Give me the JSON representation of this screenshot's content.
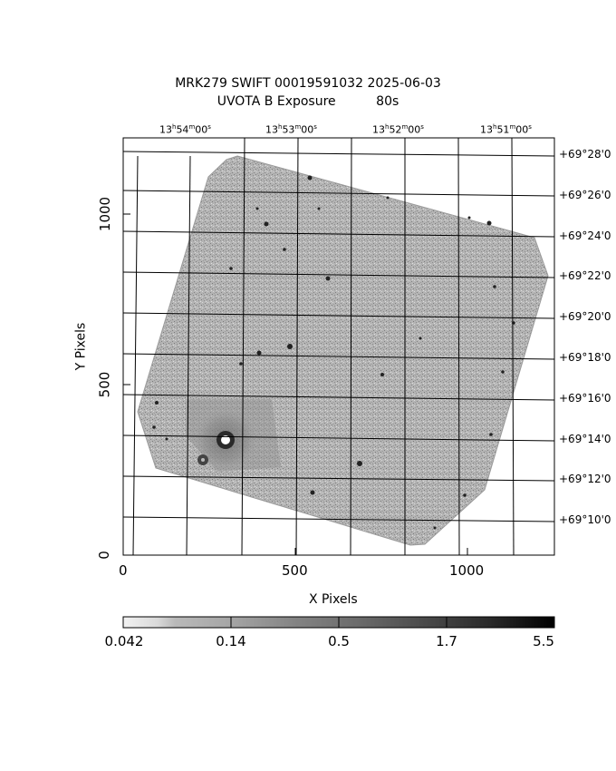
{
  "title": {
    "line1": "MRK279 SWIFT 00019591032 2025-06-03",
    "line2": "UVOTA B Exposure          80s"
  },
  "axes": {
    "x_label": "X Pixels",
    "y_label": "Y Pixels",
    "x_ticks": [
      "0",
      "500",
      "1000"
    ],
    "y_ticks": [
      "0",
      "500",
      "1000"
    ],
    "ra_ticks": [
      {
        "h": "13",
        "m": "54",
        "s": "00"
      },
      {
        "h": "13",
        "m": "53",
        "s": "00"
      },
      {
        "h": "13",
        "m": "52",
        "s": "00"
      },
      {
        "h": "13",
        "m": "51",
        "s": "00"
      }
    ],
    "dec_ticks": [
      {
        "d": "+69",
        "m": "28",
        "s": "0"
      },
      {
        "d": "+69",
        "m": "26",
        "s": "0"
      },
      {
        "d": "+69",
        "m": "24",
        "s": "0"
      },
      {
        "d": "+69",
        "m": "22",
        "s": "0"
      },
      {
        "d": "+69",
        "m": "20",
        "s": "0"
      },
      {
        "d": "+69",
        "m": "18",
        "s": "0"
      },
      {
        "d": "+69",
        "m": "16",
        "s": "0"
      },
      {
        "d": "+69",
        "m": "14",
        "s": "0"
      },
      {
        "d": "+69",
        "m": "12",
        "s": "0"
      },
      {
        "d": "+69",
        "m": "10",
        "s": "0"
      }
    ]
  },
  "colorbar": {
    "labels": [
      "0.042",
      "0.14",
      "0.5",
      "1.7",
      "5.5"
    ],
    "scale": "log",
    "colors": {
      "low": "#f2f2f2",
      "high": "#000000"
    }
  },
  "image": {
    "background_color": "#ffffff",
    "field_color": "#a9a9a9"
  }
}
